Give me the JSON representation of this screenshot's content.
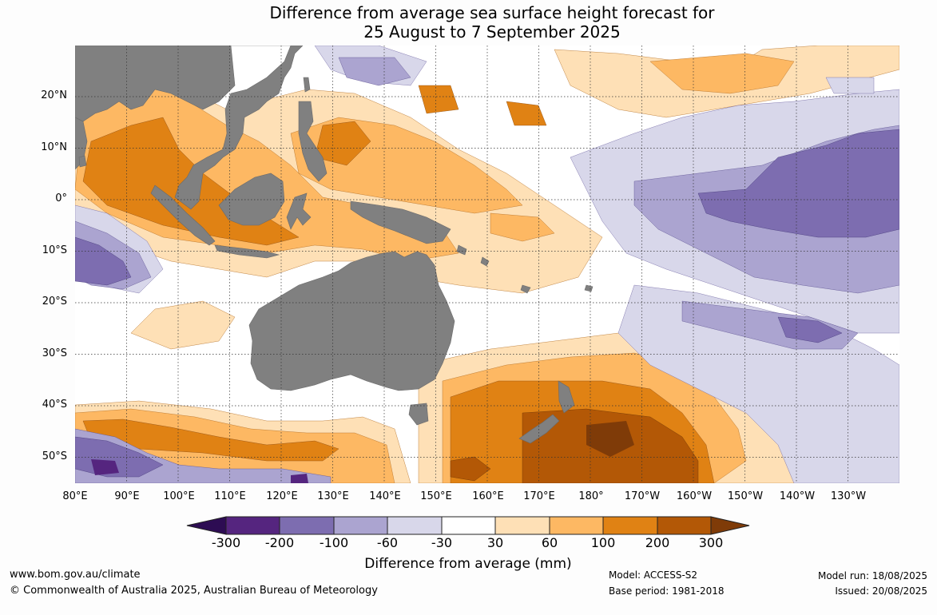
{
  "title": {
    "line1": "Difference from average sea surface height forecast for",
    "line2": "25 August to 7 September 2025"
  },
  "map": {
    "lat_labels": [
      "20°N",
      "10°N",
      "0°",
      "10°S",
      "20°S",
      "30°S",
      "40°S",
      "50°S"
    ],
    "lon_labels": [
      "80°E",
      "90°E",
      "100°E",
      "110°E",
      "120°E",
      "130°E",
      "140°E",
      "150°E",
      "160°E",
      "170°E",
      "180°",
      "170°W",
      "160°W",
      "150°W",
      "140°W",
      "130°W"
    ],
    "land_color": "#808080",
    "grid": "dotted"
  },
  "legend": {
    "ticks": [
      "-300",
      "-200",
      "-100",
      "-60",
      "-30",
      "30",
      "60",
      "100",
      "200",
      "300"
    ],
    "colors": [
      "#2d0c53",
      "#55257f",
      "#7d6db0",
      "#aba4d0",
      "#d8d7ea",
      "#ffffff",
      "#fee0b6",
      "#fdb863",
      "#e08214",
      "#b35806",
      "#7f3b08"
    ],
    "caption": "Difference from average (mm)"
  },
  "footer": {
    "url": "www.bom.gov.au/climate",
    "copyright": "© Commonwealth of Australia 2025, Australian Bureau of Meteorology",
    "model": "Model: ACCESS-S2",
    "base_period": "Base period: 1981-2018",
    "model_run": "Model run: 18/08/2025",
    "issued": "Issued: 20/08/2025"
  }
}
